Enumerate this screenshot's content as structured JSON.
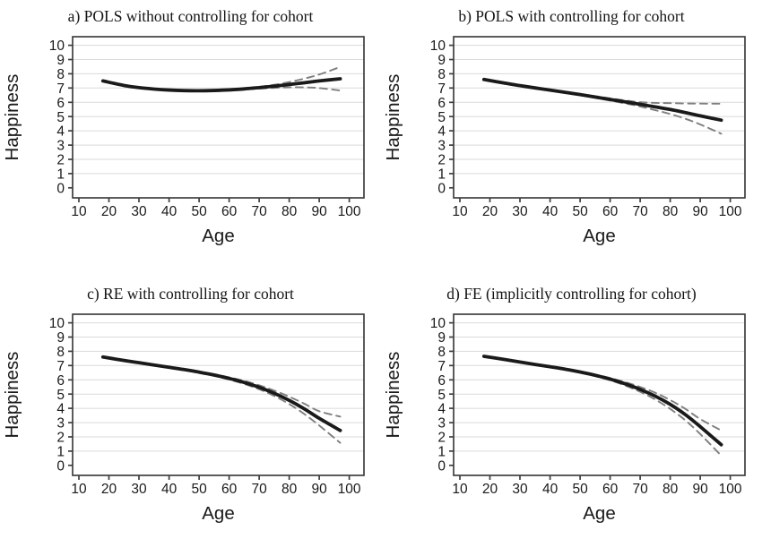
{
  "figure": {
    "background": "#ffffff",
    "colors": {
      "solid_line": "#1a1a1a",
      "dashed_line": "#7f7f7f",
      "gridline": "#dadada",
      "axis_border": "#3f3f3f",
      "text": "#1a1a1a"
    }
  },
  "chart_data": [
    {
      "type": "line",
      "panel": "a",
      "title": "a) POLS without controlling for cohort",
      "xlabel": "Age",
      "ylabel": "Happiness",
      "xlim": [
        7.9,
        104.9
      ],
      "ylim": [
        -0.7,
        10.6
      ],
      "xticks": [
        10,
        20,
        30,
        40,
        50,
        60,
        70,
        80,
        90,
        100
      ],
      "yticks": [
        0,
        1,
        2,
        3,
        4,
        5,
        6,
        7,
        8,
        9,
        10
      ],
      "grid_y": [
        1,
        2,
        3,
        4,
        5,
        6,
        7,
        8,
        9,
        10
      ],
      "x": [
        18,
        25,
        30,
        35,
        40,
        45,
        50,
        55,
        60,
        65,
        70,
        75,
        80,
        85,
        90,
        97
      ],
      "series": [
        {
          "name": "point-estimate",
          "style": "solid",
          "values": [
            7.5,
            7.18,
            7.03,
            6.93,
            6.86,
            6.82,
            6.81,
            6.83,
            6.87,
            6.94,
            7.03,
            7.13,
            7.25,
            7.37,
            7.5,
            7.65
          ]
        },
        {
          "name": "ci-upper",
          "style": "dashed",
          "values": [
            7.52,
            7.2,
            7.05,
            6.95,
            6.88,
            6.84,
            6.83,
            6.85,
            6.9,
            6.98,
            7.09,
            7.23,
            7.42,
            7.66,
            7.95,
            8.48
          ]
        },
        {
          "name": "ci-lower",
          "style": "dashed",
          "values": [
            7.48,
            7.16,
            7.01,
            6.91,
            6.84,
            6.8,
            6.79,
            6.81,
            6.84,
            6.9,
            6.96,
            7.01,
            7.05,
            7.05,
            7.0,
            6.83
          ]
        }
      ]
    },
    {
      "type": "line",
      "panel": "b",
      "title": "b) POLS with controlling for cohort",
      "xlabel": "Age",
      "ylabel": "Happiness",
      "xlim": [
        7.9,
        104.9
      ],
      "ylim": [
        -0.7,
        10.6
      ],
      "xticks": [
        10,
        20,
        30,
        40,
        50,
        60,
        70,
        80,
        90,
        100
      ],
      "yticks": [
        0,
        1,
        2,
        3,
        4,
        5,
        6,
        7,
        8,
        9,
        10
      ],
      "grid_y": [
        1,
        2,
        3,
        4,
        5,
        6,
        7,
        8,
        9,
        10
      ],
      "x": [
        18,
        25,
        30,
        35,
        40,
        45,
        50,
        55,
        60,
        65,
        70,
        75,
        80,
        85,
        90,
        97
      ],
      "series": [
        {
          "name": "point-estimate",
          "style": "solid",
          "values": [
            7.6,
            7.34,
            7.17,
            7.01,
            6.86,
            6.7,
            6.54,
            6.37,
            6.2,
            6.03,
            5.86,
            5.68,
            5.5,
            5.28,
            5.05,
            4.75
          ]
        },
        {
          "name": "ci-upper",
          "style": "dashed",
          "values": [
            7.62,
            7.36,
            7.19,
            7.03,
            6.88,
            6.73,
            6.58,
            6.43,
            6.28,
            6.13,
            6.01,
            5.96,
            5.94,
            5.92,
            5.91,
            5.9
          ]
        },
        {
          "name": "ci-lower",
          "style": "dashed",
          "values": [
            7.58,
            7.32,
            7.15,
            6.99,
            6.84,
            6.67,
            6.5,
            6.31,
            6.12,
            5.92,
            5.71,
            5.45,
            5.18,
            4.85,
            4.45,
            3.8
          ]
        }
      ]
    },
    {
      "type": "line",
      "panel": "c",
      "title": "c) RE with controlling for cohort",
      "xlabel": "Age",
      "ylabel": "Happiness",
      "xlim": [
        7.9,
        104.9
      ],
      "ylim": [
        -0.7,
        10.6
      ],
      "xticks": [
        10,
        20,
        30,
        40,
        50,
        60,
        70,
        80,
        90,
        100
      ],
      "yticks": [
        0,
        1,
        2,
        3,
        4,
        5,
        6,
        7,
        8,
        9,
        10
      ],
      "grid_y": [
        1,
        2,
        3,
        4,
        5,
        6,
        7,
        8,
        9,
        10
      ],
      "x": [
        18,
        25,
        30,
        35,
        40,
        45,
        50,
        55,
        60,
        65,
        70,
        75,
        80,
        85,
        90,
        97
      ],
      "series": [
        {
          "name": "point-estimate",
          "style": "solid",
          "values": [
            7.6,
            7.36,
            7.2,
            7.04,
            6.88,
            6.72,
            6.54,
            6.34,
            6.1,
            5.82,
            5.48,
            5.06,
            4.56,
            3.97,
            3.3,
            2.45
          ]
        },
        {
          "name": "ci-upper",
          "style": "dashed",
          "values": [
            7.62,
            7.38,
            7.22,
            7.06,
            6.91,
            6.75,
            6.58,
            6.4,
            6.18,
            5.93,
            5.62,
            5.25,
            4.82,
            4.33,
            3.8,
            3.42
          ]
        },
        {
          "name": "ci-lower",
          "style": "dashed",
          "values": [
            7.58,
            7.34,
            7.18,
            7.02,
            6.85,
            6.69,
            6.5,
            6.28,
            6.02,
            5.71,
            5.34,
            4.87,
            4.3,
            3.61,
            2.8,
            1.58
          ]
        }
      ]
    },
    {
      "type": "line",
      "panel": "d",
      "title": "d) FE (implicitly controlling for cohort)",
      "xlabel": "Age",
      "ylabel": "Happiness",
      "xlim": [
        7.9,
        104.9
      ],
      "ylim": [
        -0.7,
        10.6
      ],
      "xticks": [
        10,
        20,
        30,
        40,
        50,
        60,
        70,
        80,
        90,
        100
      ],
      "yticks": [
        0,
        1,
        2,
        3,
        4,
        5,
        6,
        7,
        8,
        9,
        10
      ],
      "grid_y": [
        1,
        2,
        3,
        4,
        5,
        6,
        7,
        8,
        9,
        10
      ],
      "x": [
        18,
        25,
        30,
        35,
        40,
        45,
        50,
        55,
        60,
        65,
        70,
        75,
        80,
        85,
        90,
        97
      ],
      "series": [
        {
          "name": "point-estimate",
          "style": "solid",
          "values": [
            7.65,
            7.42,
            7.25,
            7.08,
            6.92,
            6.75,
            6.55,
            6.32,
            6.05,
            5.72,
            5.33,
            4.86,
            4.28,
            3.57,
            2.72,
            1.45
          ]
        },
        {
          "name": "ci-upper",
          "style": "dashed",
          "values": [
            7.67,
            7.44,
            7.27,
            7.1,
            6.95,
            6.78,
            6.59,
            6.38,
            6.13,
            5.84,
            5.5,
            5.1,
            4.58,
            3.97,
            3.25,
            2.45
          ]
        },
        {
          "name": "ci-lower",
          "style": "dashed",
          "values": [
            7.63,
            7.4,
            7.23,
            7.06,
            6.89,
            6.72,
            6.51,
            6.26,
            5.97,
            5.6,
            5.16,
            4.62,
            3.96,
            3.17,
            2.2,
            0.68
          ]
        }
      ]
    }
  ]
}
